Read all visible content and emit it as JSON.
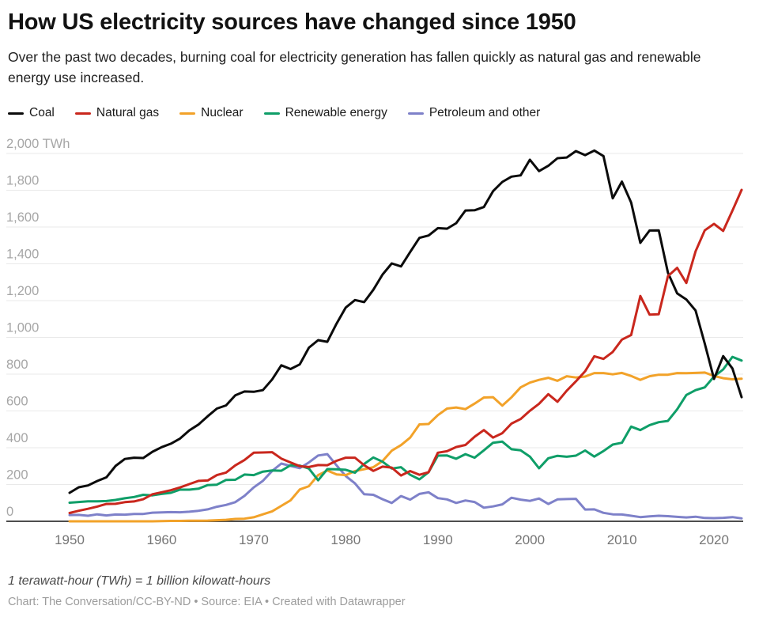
{
  "header": {
    "title": "How US electricity sources have changed since 1950",
    "subtitle": "Over the past two decades, burning coal for electricity generation has fallen quickly as natural gas and renewable energy use increased."
  },
  "chart_data": {
    "type": "line",
    "title": "How US electricity sources have changed since 1950",
    "xlabel": "",
    "ylabel": "TWh",
    "ylim": [
      0,
      2000
    ],
    "grid": true,
    "legend_position": "top",
    "yticks": [
      0,
      200,
      400,
      600,
      800,
      1000,
      1200,
      1400,
      1600,
      1800,
      2000
    ],
    "ytick_unit": "TWh",
    "ytick_top_label": "2,000 TWh",
    "xticks": [
      1950,
      1960,
      1970,
      1980,
      1990,
      2000,
      2010,
      2020
    ],
    "x": [
      1950,
      1951,
      1952,
      1953,
      1954,
      1955,
      1956,
      1957,
      1958,
      1959,
      1960,
      1961,
      1962,
      1963,
      1964,
      1965,
      1966,
      1967,
      1968,
      1969,
      1970,
      1971,
      1972,
      1973,
      1974,
      1975,
      1976,
      1977,
      1978,
      1979,
      1980,
      1981,
      1982,
      1983,
      1984,
      1985,
      1986,
      1987,
      1988,
      1989,
      1990,
      1991,
      1992,
      1993,
      1994,
      1995,
      1996,
      1997,
      1998,
      1999,
      2000,
      2001,
      2002,
      2003,
      2004,
      2005,
      2006,
      2007,
      2008,
      2009,
      2010,
      2011,
      2012,
      2013,
      2014,
      2015,
      2016,
      2017,
      2018,
      2019,
      2020,
      2021,
      2022,
      2023
    ],
    "draw_order": [
      4,
      2,
      3,
      0,
      1
    ],
    "series": [
      {
        "name": "Coal",
        "color": "#0b0b0b",
        "values": [
          155,
          185,
          195,
          219,
          239,
          301,
          339,
          346,
          344,
          378,
          403,
          422,
          450,
          494,
          526,
          571,
          613,
          630,
          685,
          706,
          704,
          713,
          771,
          848,
          828,
          853,
          944,
          985,
          976,
          1075,
          1162,
          1203,
          1192,
          1259,
          1342,
          1402,
          1386,
          1464,
          1541,
          1554,
          1594,
          1591,
          1621,
          1690,
          1691,
          1709,
          1795,
          1845,
          1874,
          1881,
          1966,
          1904,
          1933,
          1974,
          1978,
          2013,
          1991,
          2016,
          1986,
          1756,
          1847,
          1733,
          1514,
          1581,
          1582,
          1352,
          1239,
          1206,
          1146,
          966,
          774,
          898,
          831,
          675
        ]
      },
      {
        "name": "Natural gas",
        "color": "#c9271d",
        "values": [
          45,
          57,
          68,
          80,
          94,
          95,
          104,
          108,
          120,
          147,
          158,
          169,
          184,
          202,
          220,
          222,
          251,
          265,
          304,
          333,
          373,
          374,
          376,
          341,
          320,
          300,
          295,
          306,
          305,
          329,
          346,
          346,
          305,
          274,
          297,
          292,
          249,
          273,
          253,
          267,
          373,
          381,
          404,
          415,
          460,
          496,
          455,
          479,
          531,
          556,
          601,
          639,
          691,
          650,
          710,
          761,
          816,
          897,
          883,
          921,
          988,
          1013,
          1225,
          1124,
          1126,
          1333,
          1378,
          1296,
          1468,
          1582,
          1617,
          1579,
          1689,
          1802
        ]
      },
      {
        "name": "Nuclear",
        "color": "#f2a229",
        "values": [
          0,
          0,
          0,
          0,
          0,
          0,
          0,
          0,
          0,
          0,
          1,
          2,
          2,
          3,
          3,
          4,
          6,
          8,
          13,
          14,
          22,
          38,
          54,
          84,
          114,
          173,
          191,
          251,
          276,
          255,
          251,
          273,
          283,
          294,
          328,
          384,
          414,
          455,
          527,
          529,
          577,
          613,
          619,
          610,
          640,
          673,
          675,
          629,
          674,
          728,
          754,
          769,
          780,
          764,
          789,
          782,
          787,
          806,
          806,
          799,
          807,
          790,
          769,
          789,
          797,
          797,
          806,
          805,
          807,
          809,
          790,
          778,
          772,
          775
        ]
      },
      {
        "name": "Renewable energy",
        "color": "#0f9e68",
        "values": [
          101,
          105,
          109,
          109,
          110,
          116,
          125,
          132,
          144,
          141,
          149,
          155,
          172,
          172,
          177,
          197,
          199,
          225,
          226,
          254,
          251,
          270,
          276,
          275,
          305,
          303,
          287,
          223,
          284,
          283,
          280,
          264,
          312,
          347,
          324,
          287,
          294,
          253,
          228,
          267,
          357,
          358,
          340,
          365,
          346,
          386,
          427,
          433,
          392,
          386,
          352,
          288,
          343,
          356,
          351,
          357,
          385,
          352,
          382,
          417,
          427,
          515,
          496,
          523,
          539,
          546,
          609,
          687,
          713,
          728,
          787,
          826,
          894,
          874
        ]
      },
      {
        "name": "Petroleum and other",
        "color": "#7e81c9",
        "values": [
          34,
          35,
          30,
          38,
          32,
          37,
          36,
          40,
          40,
          47,
          48,
          50,
          49,
          52,
          57,
          65,
          79,
          89,
          104,
          138,
          184,
          220,
          274,
          314,
          301,
          289,
          320,
          358,
          365,
          304,
          246,
          206,
          147,
          144,
          120,
          100,
          137,
          118,
          149,
          158,
          126,
          119,
          100,
          113,
          105,
          74,
          81,
          92,
          128,
          118,
          111,
          124,
          94,
          119,
          121,
          122,
          64,
          65,
          46,
          38,
          37,
          30,
          23,
          27,
          30,
          28,
          24,
          21,
          25,
          18,
          17,
          19,
          23,
          16
        ]
      }
    ],
    "colors": {
      "grid": "#e9e9e9",
      "axis": "#4d4d4d",
      "ytick_text": "#a6a6a6",
      "xtick_text": "#757575"
    }
  },
  "footer": {
    "note": "1 terawatt-hour (TWh) = 1 billion kilowatt-hours",
    "credit": "Chart: The Conversation/CC-BY-ND • Source: EIA • Created with Datawrapper"
  }
}
